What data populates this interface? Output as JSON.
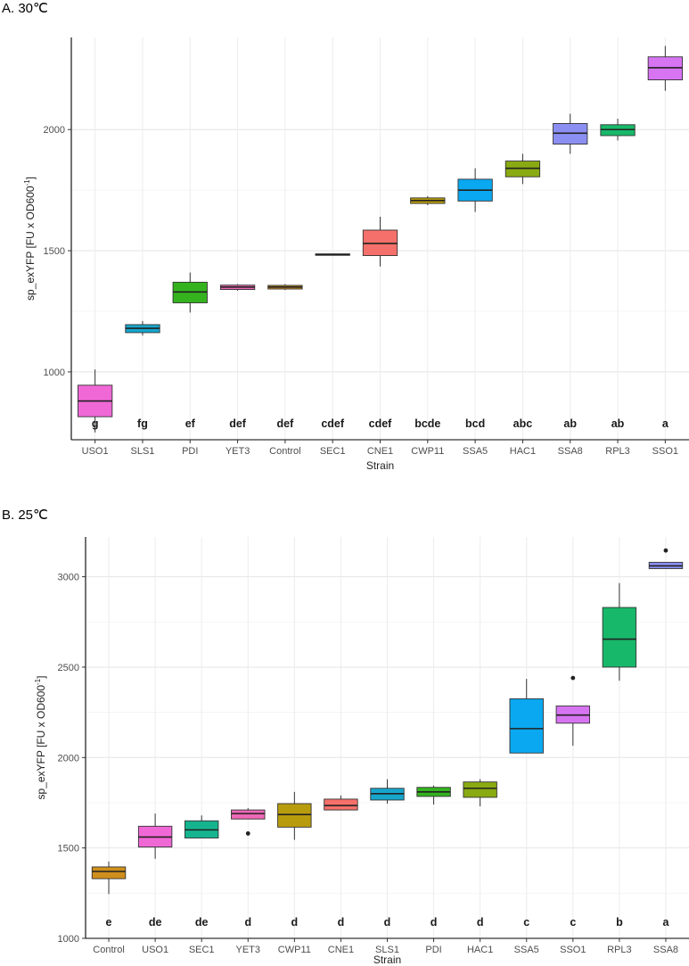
{
  "chart_data": [
    {
      "type": "box",
      "title": "A. 30℃",
      "xlabel": "Strain",
      "ylabel": "sp_exYFP [FU x OD600",
      "ylabel_sup": "-1",
      "ylabel_close": "]",
      "ylim": [
        720,
        2380
      ],
      "yticks": [
        1000,
        1500,
        2000
      ],
      "grid": true,
      "series": [
        {
          "name": "USO1",
          "color": "#f068d6",
          "q1": 815,
          "median": 880,
          "q3": 945,
          "whisker_low": 750,
          "whisker_high": 1010,
          "outliers": [],
          "letter": "g"
        },
        {
          "name": "SLS1",
          "color": "#16a6cc",
          "q1": 1162,
          "median": 1180,
          "q3": 1195,
          "whisker_low": 1150,
          "whisker_high": 1210,
          "outliers": [],
          "letter": "fg"
        },
        {
          "name": "PDI",
          "color": "#35b31f",
          "q1": 1285,
          "median": 1330,
          "q3": 1370,
          "whisker_low": 1245,
          "whisker_high": 1410,
          "outliers": [],
          "letter": "ef"
        },
        {
          "name": "YET3",
          "color": "#ee68b6",
          "q1": 1340,
          "median": 1350,
          "q3": 1358,
          "whisker_low": 1335,
          "whisker_high": 1362,
          "outliers": [],
          "letter": "def"
        },
        {
          "name": "Control",
          "color": "#cf8f1c",
          "q1": 1342,
          "median": 1350,
          "q3": 1357,
          "whisker_low": 1338,
          "whisker_high": 1362,
          "outliers": [],
          "letter": "def"
        },
        {
          "name": "SEC1",
          "color": "#15b48f",
          "q1": 1481,
          "median": 1484,
          "q3": 1487,
          "whisker_low": 1480,
          "whisker_high": 1488,
          "outliers": [],
          "letter": "cdef"
        },
        {
          "name": "CNE1",
          "color": "#f5706a",
          "q1": 1480,
          "median": 1530,
          "q3": 1585,
          "whisker_low": 1435,
          "whisker_high": 1640,
          "outliers": [],
          "letter": "cdef"
        },
        {
          "name": "CWP11",
          "color": "#b89c0d",
          "q1": 1695,
          "median": 1707,
          "q3": 1718,
          "whisker_low": 1688,
          "whisker_high": 1725,
          "outliers": [],
          "letter": "bcde"
        },
        {
          "name": "SSA5",
          "color": "#0aa8f0",
          "q1": 1705,
          "median": 1750,
          "q3": 1795,
          "whisker_low": 1660,
          "whisker_high": 1840,
          "outliers": [],
          "letter": "bcd"
        },
        {
          "name": "HAC1",
          "color": "#8aaa12",
          "q1": 1805,
          "median": 1840,
          "q3": 1870,
          "whisker_low": 1775,
          "whisker_high": 1900,
          "outliers": [],
          "letter": "abc"
        },
        {
          "name": "SSA8",
          "color": "#8c8ff2",
          "q1": 1940,
          "median": 1985,
          "q3": 2025,
          "whisker_low": 1900,
          "whisker_high": 2065,
          "outliers": [],
          "letter": "ab"
        },
        {
          "name": "RPL3",
          "color": "#18b86a",
          "q1": 1975,
          "median": 2000,
          "q3": 2020,
          "whisker_low": 1955,
          "whisker_high": 2045,
          "outliers": [],
          "letter": "ab"
        },
        {
          "name": "SSO1",
          "color": "#d774f2",
          "q1": 2205,
          "median": 2255,
          "q3": 2300,
          "whisker_low": 2160,
          "whisker_high": 2345,
          "outliers": [],
          "letter": "a"
        }
      ]
    },
    {
      "type": "box",
      "title": "B. 25℃",
      "xlabel": "Strain",
      "ylabel": "sp_exYFP [FU x OD600",
      "ylabel_sup": "-1",
      "ylabel_close": "]",
      "ylim": [
        1000,
        3220
      ],
      "yticks": [
        1000,
        1500,
        2000,
        2500,
        3000
      ],
      "grid": true,
      "series": [
        {
          "name": "Control",
          "color": "#cf8f1c",
          "q1": 1330,
          "median": 1370,
          "q3": 1395,
          "whisker_low": 1245,
          "whisker_high": 1425,
          "outliers": [],
          "letter": "e"
        },
        {
          "name": "USO1",
          "color": "#f068d6",
          "q1": 1505,
          "median": 1560,
          "q3": 1620,
          "whisker_low": 1440,
          "whisker_high": 1690,
          "outliers": [],
          "letter": "de"
        },
        {
          "name": "SEC1",
          "color": "#15b48f",
          "q1": 1555,
          "median": 1600,
          "q3": 1650,
          "whisker_low": 1555,
          "whisker_high": 1680,
          "outliers": [],
          "letter": "de"
        },
        {
          "name": "YET3",
          "color": "#ee68b6",
          "q1": 1660,
          "median": 1690,
          "q3": 1710,
          "whisker_low": 1660,
          "whisker_high": 1720,
          "outliers": [
            1580
          ],
          "letter": "d"
        },
        {
          "name": "CWP11",
          "color": "#b89c0d",
          "q1": 1615,
          "median": 1685,
          "q3": 1745,
          "whisker_low": 1545,
          "whisker_high": 1810,
          "outliers": [],
          "letter": "d"
        },
        {
          "name": "CNE1",
          "color": "#f5706a",
          "q1": 1710,
          "median": 1735,
          "q3": 1770,
          "whisker_low": 1710,
          "whisker_high": 1790,
          "outliers": [],
          "letter": "d"
        },
        {
          "name": "SLS1",
          "color": "#16a6cc",
          "q1": 1765,
          "median": 1800,
          "q3": 1830,
          "whisker_low": 1745,
          "whisker_high": 1880,
          "outliers": [],
          "letter": "d"
        },
        {
          "name": "PDI",
          "color": "#35b31f",
          "q1": 1785,
          "median": 1810,
          "q3": 1835,
          "whisker_low": 1740,
          "whisker_high": 1845,
          "outliers": [],
          "letter": "d"
        },
        {
          "name": "HAC1",
          "color": "#8aaa12",
          "q1": 1780,
          "median": 1830,
          "q3": 1865,
          "whisker_low": 1730,
          "whisker_high": 1880,
          "outliers": [],
          "letter": "d"
        },
        {
          "name": "SSA5",
          "color": "#0aa8f0",
          "q1": 2025,
          "median": 2160,
          "q3": 2325,
          "whisker_low": 2025,
          "whisker_high": 2435,
          "outliers": [],
          "letter": "c"
        },
        {
          "name": "SSO1",
          "color": "#d774f2",
          "q1": 2190,
          "median": 2235,
          "q3": 2285,
          "whisker_low": 2065,
          "whisker_high": 2285,
          "outliers": [
            2440
          ],
          "letter": "c"
        },
        {
          "name": "RPL3",
          "color": "#18b86a",
          "q1": 2500,
          "median": 2655,
          "q3": 2830,
          "whisker_low": 2425,
          "whisker_high": 2965,
          "outliers": [],
          "letter": "b"
        },
        {
          "name": "SSA8",
          "color": "#8c8ff2",
          "q1": 3045,
          "median": 3060,
          "q3": 3080,
          "whisker_low": 3045,
          "whisker_high": 3080,
          "outliers": [
            3145
          ],
          "letter": "a"
        }
      ]
    }
  ]
}
